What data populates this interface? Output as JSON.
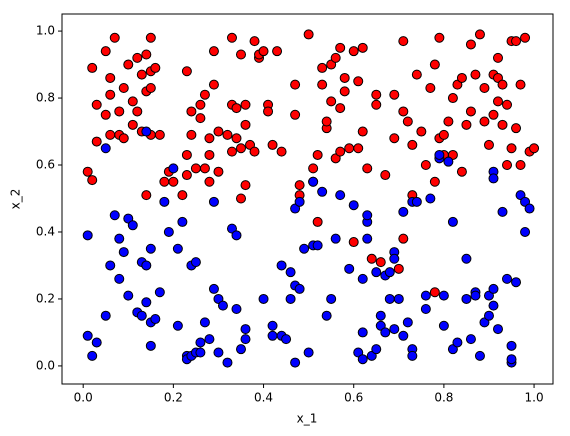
{
  "chart_data": {
    "type": "scatter",
    "xlabel": "x_1",
    "ylabel": "x_2",
    "xlim": [
      -0.047,
      1.042
    ],
    "ylim": [
      -0.054,
      1.051
    ],
    "xticks": [
      {
        "value": 0,
        "label": "0.0"
      },
      0.2,
      0.4,
      0.6,
      0.8,
      {
        "value": 1,
        "label": "1.0"
      }
    ],
    "yticks": [
      {
        "value": 0,
        "label": "0.0"
      },
      0.2,
      0.4,
      0.6,
      0.8,
      {
        "value": 1,
        "label": "1.0"
      }
    ],
    "series": [
      {
        "color": "#ff0000",
        "x": [
          0.01,
          0.02,
          0.02,
          0.03,
          0.03,
          0.05,
          0.06,
          0.05,
          0.06,
          0.06,
          0.07,
          0.08,
          0.08,
          0.09,
          0.09,
          0.1,
          0.11,
          0.11,
          0.12,
          0.12,
          0.13,
          0.13,
          0.14,
          0.14,
          0.14,
          0.15,
          0.15,
          0.15,
          0.15,
          0.16,
          0.17,
          0.18,
          0.19,
          0.2,
          0.22,
          0.23,
          0.23,
          0.23,
          0.24,
          0.24,
          0.25,
          0.26,
          0.26,
          0.27,
          0.27,
          0.28,
          0.28,
          0.28,
          0.29,
          0.29,
          0.3,
          0.3,
          0.32,
          0.33,
          0.33,
          0.33,
          0.34,
          0.34,
          0.35,
          0.35,
          0.35,
          0.36,
          0.36,
          0.36,
          0.37,
          0.38,
          0.38,
          0.39,
          0.39,
          0.4,
          0.41,
          0.41,
          0.42,
          0.43,
          0.44,
          0.47,
          0.47,
          0.48,
          0.48,
          0.5,
          0.51,
          0.51,
          0.52,
          0.52,
          0.53,
          0.53,
          0.54,
          0.54,
          0.55,
          0.55,
          0.56,
          0.56,
          0.57,
          0.57,
          0.57,
          0.58,
          0.58,
          0.59,
          0.6,
          0.6,
          0.61,
          0.61,
          0.62,
          0.62,
          0.63,
          0.64,
          0.65,
          0.65,
          0.66,
          0.67,
          0.69,
          0.69,
          0.7,
          0.71,
          0.71,
          0.71,
          0.72,
          0.73,
          0.73,
          0.74,
          0.75,
          0.76,
          0.77,
          0.78,
          0.78,
          0.78,
          0.79,
          0.79,
          0.8,
          0.8,
          0.81,
          0.82,
          0.82,
          0.83,
          0.84,
          0.84,
          0.85,
          0.86,
          0.86,
          0.87,
          0.88,
          0.89,
          0.89,
          0.9,
          0.91,
          0.91,
          0.92,
          0.92,
          0.92,
          0.93,
          0.93,
          0.94,
          0.94,
          0.95,
          0.95,
          0.96,
          0.96,
          0.97,
          0.97,
          0.98,
          0.99,
          1.0
        ],
        "values": [
          0.58,
          0.555,
          0.89,
          0.78,
          0.67,
          0.94,
          0.86,
          0.75,
          0.81,
          0.69,
          0.98,
          0.69,
          0.76,
          0.83,
          0.68,
          0.9,
          0.72,
          0.79,
          0.76,
          0.92,
          0.87,
          0.7,
          0.93,
          0.82,
          0.51,
          0.98,
          0.88,
          0.69,
          0.83,
          0.89,
          0.69,
          0.55,
          0.58,
          0.55,
          0.51,
          0.57,
          0.88,
          0.63,
          0.76,
          0.69,
          0.59,
          0.78,
          0.74,
          0.59,
          0.81,
          0.55,
          0.68,
          0.63,
          0.84,
          0.94,
          0.58,
          0.7,
          0.69,
          0.78,
          0.64,
          0.98,
          0.77,
          0.68,
          0.5,
          0.65,
          0.93,
          0.54,
          0.78,
          0.72,
          0.66,
          0.97,
          0.64,
          0.92,
          0.93,
          0.94,
          0.78,
          0.76,
          0.66,
          0.94,
          0.64,
          0.84,
          0.75,
          0.54,
          0.51,
          0.99,
          0.55,
          0.59,
          0.63,
          0.43,
          0.84,
          0.89,
          0.71,
          0.73,
          0.9,
          0.79,
          0.62,
          0.92,
          0.95,
          0.77,
          0.64,
          0.86,
          0.82,
          0.65,
          0.94,
          0.37,
          0.85,
          0.65,
          0.95,
          0.7,
          0.59,
          0.32,
          0.78,
          0.81,
          0.31,
          0.57,
          0.81,
          0.68,
          0.29,
          0.97,
          0.76,
          0.38,
          0.73,
          0.66,
          0.51,
          0.87,
          0.7,
          0.6,
          0.83,
          0.55,
          0.9,
          0.22,
          0.68,
          0.98,
          0.69,
          0.63,
          0.73,
          0.8,
          0.63,
          0.84,
          0.86,
          0.58,
          0.72,
          0.76,
          0.96,
          0.87,
          0.99,
          0.73,
          0.83,
          0.66,
          0.87,
          0.75,
          0.86,
          0.79,
          0.92,
          0.72,
          0.84,
          0.6,
          0.78,
          0.97,
          0.65,
          0.71,
          0.97,
          0.84,
          0.6,
          0.98,
          0.64,
          0.65
        ]
      },
      {
        "color": "#0000ff",
        "x": [
          0.01,
          0.01,
          0.02,
          0.03,
          0.05,
          0.05,
          0.06,
          0.07,
          0.08,
          0.08,
          0.09,
          0.1,
          0.1,
          0.11,
          0.12,
          0.13,
          0.13,
          0.14,
          0.14,
          0.14,
          0.15,
          0.15,
          0.15,
          0.16,
          0.17,
          0.18,
          0.19,
          0.2,
          0.21,
          0.21,
          0.22,
          0.23,
          0.23,
          0.24,
          0.24,
          0.25,
          0.25,
          0.26,
          0.26,
          0.27,
          0.28,
          0.29,
          0.29,
          0.3,
          0.3,
          0.31,
          0.32,
          0.33,
          0.34,
          0.34,
          0.35,
          0.36,
          0.36,
          0.4,
          0.42,
          0.42,
          0.44,
          0.44,
          0.45,
          0.46,
          0.46,
          0.47,
          0.47,
          0.47,
          0.48,
          0.48,
          0.49,
          0.5,
          0.51,
          0.51,
          0.52,
          0.53,
          0.54,
          0.55,
          0.56,
          0.57,
          0.59,
          0.6,
          0.61,
          0.62,
          0.62,
          0.62,
          0.63,
          0.63,
          0.63,
          0.64,
          0.65,
          0.65,
          0.66,
          0.66,
          0.67,
          0.67,
          0.68,
          0.68,
          0.69,
          0.69,
          0.69,
          0.7,
          0.71,
          0.71,
          0.72,
          0.73,
          0.73,
          0.73,
          0.74,
          0.76,
          0.76,
          0.77,
          0.79,
          0.79,
          0.8,
          0.8,
          0.81,
          0.82,
          0.82,
          0.83,
          0.85,
          0.85,
          0.86,
          0.87,
          0.87,
          0.88,
          0.89,
          0.9,
          0.9,
          0.91,
          0.91,
          0.91,
          0.91,
          0.92,
          0.93,
          0.94,
          0.95,
          0.95,
          0.95,
          0.96,
          0.97,
          0.98,
          0.99,
          0.98
        ],
        "values": [
          0.39,
          0.09,
          0.03,
          0.07,
          0.65,
          0.15,
          0.3,
          0.45,
          0.38,
          0.26,
          0.34,
          0.44,
          0.21,
          0.42,
          0.16,
          0.15,
          0.31,
          0.19,
          0.3,
          0.7,
          0.06,
          0.35,
          0.13,
          0.14,
          0.22,
          0.49,
          0.4,
          0.59,
          0.12,
          0.35,
          0.43,
          0.03,
          0.02,
          0.3,
          0.03,
          0.31,
          0.04,
          0.04,
          0.07,
          0.13,
          0.08,
          0.49,
          0.23,
          0.04,
          0.2,
          0.18,
          0.01,
          0.41,
          0.39,
          0.17,
          0.05,
          0.08,
          0.11,
          0.2,
          0.12,
          0.09,
          0.3,
          0.09,
          0.08,
          0.28,
          0.2,
          0.24,
          0.47,
          0.01,
          0.49,
          0.23,
          0.35,
          0.04,
          0.36,
          0.55,
          0.36,
          0.52,
          0.15,
          0.2,
          0.38,
          0.51,
          0.29,
          0.48,
          0.04,
          0.02,
          0.26,
          0.1,
          0.43,
          0.45,
          0.38,
          0.03,
          0.05,
          0.28,
          0.15,
          0.12,
          0.27,
          0.1,
          0.2,
          0.28,
          0.34,
          0.32,
          0.11,
          0.2,
          0.46,
          0.09,
          0.13,
          0.05,
          0.03,
          0.49,
          0.49,
          0.21,
          0.17,
          0.5,
          0.62,
          0.63,
          0.21,
          0.12,
          0.61,
          0.43,
          0.05,
          0.07,
          0.2,
          0.32,
          0.08,
          0.22,
          0.21,
          0.03,
          0.13,
          0.21,
          0.15,
          0.58,
          0.56,
          0.23,
          0.18,
          0.11,
          0.46,
          0.26,
          0.01,
          0.06,
          0.02,
          0.25,
          0.51,
          0.49,
          0.47,
          0.4
        ]
      }
    ]
  }
}
